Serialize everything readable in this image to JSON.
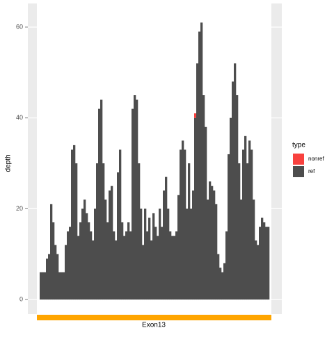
{
  "chart_data": {
    "type": "stacked-bar",
    "y_label": "depth",
    "ylim": [
      -3.2,
      65.2
    ],
    "yticks": [
      0,
      20,
      40,
      60
    ],
    "grid": true,
    "legend_title": "type",
    "legend_position": "right",
    "annotation": {
      "label": "Exon13",
      "color": "#ffa500"
    },
    "series": [
      {
        "name": "nonref",
        "color": "#f8413e",
        "values": [
          0,
          0,
          0,
          0,
          0,
          0,
          0,
          0,
          0,
          0,
          0,
          0,
          0,
          0,
          0,
          0,
          0,
          0,
          0,
          0,
          0,
          0,
          0,
          0,
          0,
          0,
          0,
          0,
          0,
          0,
          0,
          0,
          0,
          0,
          0,
          0,
          0,
          0,
          0,
          0,
          0,
          0,
          0,
          0,
          0,
          0,
          0,
          0,
          0,
          0,
          0,
          0,
          0,
          0,
          0,
          0,
          0,
          0,
          0,
          0,
          0,
          0,
          0,
          0,
          0,
          0,
          0,
          0,
          0,
          0,
          0,
          0,
          0,
          0,
          1,
          0,
          0,
          0,
          0,
          0,
          0,
          0,
          0,
          0,
          0,
          0,
          0,
          0,
          0,
          0,
          0,
          0,
          0,
          0,
          0,
          0,
          0,
          0,
          0,
          0,
          0,
          0,
          0,
          0,
          0,
          0,
          0,
          0,
          0,
          0
        ]
      },
      {
        "name": "ref",
        "color": "#4d4d4d",
        "values": [
          6,
          6,
          6,
          9,
          10,
          21,
          17,
          12,
          10,
          6,
          6,
          6,
          12,
          15,
          16,
          33,
          34,
          30,
          14,
          17,
          20,
          22,
          19,
          17,
          15,
          13,
          20,
          30,
          42,
          44,
          30,
          22,
          17,
          24,
          25,
          15,
          13,
          28,
          33,
          17,
          14,
          15,
          17,
          15,
          42,
          45,
          44,
          30,
          20,
          12,
          20,
          15,
          18,
          13,
          19,
          16,
          14,
          20,
          16,
          24,
          27,
          20,
          15,
          14,
          14,
          15,
          23,
          33,
          35,
          33,
          20,
          30,
          20,
          24,
          40,
          52,
          59,
          61,
          45,
          38,
          22,
          26,
          25,
          24,
          21,
          10,
          7,
          6,
          8,
          15,
          32,
          40,
          48,
          52,
          45,
          30,
          22,
          33,
          36,
          30,
          35,
          33,
          22,
          13,
          12,
          16,
          18,
          17,
          16,
          16
        ]
      }
    ]
  }
}
